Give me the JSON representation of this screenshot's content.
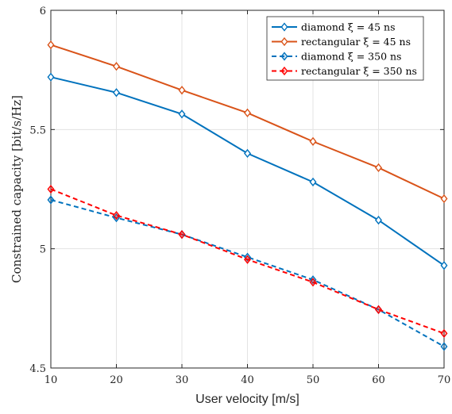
{
  "chart_data": {
    "type": "line",
    "title": "",
    "xlabel": "User velocity [m/s]",
    "ylabel": "Constrained capacity  [bit/s/Hz]",
    "xlim": [
      10,
      70
    ],
    "ylim": [
      4.5,
      6
    ],
    "x_ticks": [
      10,
      20,
      30,
      40,
      50,
      60,
      70
    ],
    "x_tick_labels": [
      "10",
      "20",
      "30",
      "40",
      "50",
      "60",
      "70"
    ],
    "y_ticks": [
      4.5,
      5,
      5.5,
      6
    ],
    "y_tick_labels": [
      "4.5",
      "5",
      "5.5",
      "6"
    ],
    "grid": true,
    "legend_position": "top-right",
    "x": [
      10,
      20,
      30,
      40,
      50,
      60,
      70
    ],
    "series": [
      {
        "name": "diamond ξ = 45 ns",
        "values": [
          5.72,
          5.655,
          5.565,
          5.4,
          5.28,
          5.12,
          4.93
        ],
        "color": "#0072BD",
        "line_style": "solid",
        "marker": "diamond"
      },
      {
        "name": "rectangular ξ = 45 ns",
        "values": [
          5.855,
          5.765,
          5.665,
          5.57,
          5.45,
          5.34,
          5.21
        ],
        "color": "#D95319",
        "line_style": "solid",
        "marker": "diamond"
      },
      {
        "name": "diamond ξ = 350 ns",
        "values": [
          5.205,
          5.13,
          5.06,
          4.965,
          4.87,
          4.745,
          4.59
        ],
        "color": "#0072BD",
        "line_style": "dashed",
        "marker": "diamond"
      },
      {
        "name": "rectangular ξ = 350 ns",
        "values": [
          5.25,
          5.14,
          5.06,
          4.955,
          4.86,
          4.745,
          4.645
        ],
        "color": "#FF0000",
        "line_style": "dashed",
        "marker": "diamond"
      }
    ]
  }
}
